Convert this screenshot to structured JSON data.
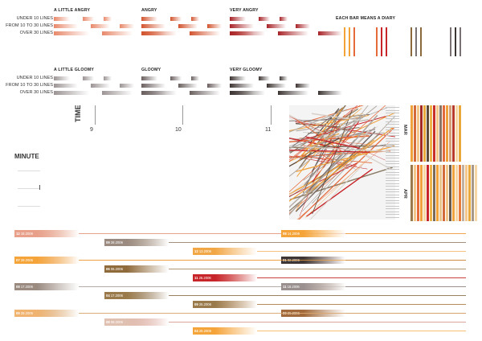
{
  "legend": {
    "rows": [
      "UNDER 10 LINES",
      "FROM 10 TO 30 LINES",
      "OVER 30 LINES"
    ],
    "groups": [
      {
        "name": "A LITTLE ANGRY",
        "color": "#e8886a"
      },
      {
        "name": "ANGRY",
        "color": "#d2542f"
      },
      {
        "name": "VERY ANGRY",
        "color": "#a82428"
      },
      {
        "name": "A LITTLE GLOOMY",
        "color": "#9c9494"
      },
      {
        "name": "GLOOMY",
        "color": "#6b6060"
      },
      {
        "name": "VERY GLOOMY",
        "color": "#3e3634"
      }
    ]
  },
  "diary_legend": {
    "title": "EACH BAR MEANS A DIARY",
    "colors": [
      "#f3a338",
      "#e46a3a",
      "#c8252a",
      "#8a6a3a",
      "#7a7272",
      "#3b3533"
    ]
  },
  "time_axis": {
    "label": "TIME",
    "ticks": [
      "9",
      "10",
      "11"
    ]
  },
  "minute_axis": {
    "label": "MINUTE"
  },
  "months": [
    "MAR",
    "APR"
  ],
  "mar_colors": [
    "#f0a23c",
    "#d36a3a",
    "#f3c88a",
    "#a62a24",
    "#e8a83a",
    "#5a4a3a",
    "#f0b54a",
    "#c9302a",
    "#f3c88a",
    "#8a7464",
    "#e46a3a",
    "#f0a23c",
    "#d4a07a",
    "#b83a2a",
    "#f5d8a6",
    "#e8a83a"
  ],
  "apr_colors": [
    "#9a7a4a",
    "#f3c88a",
    "#e46a3a",
    "#f0a23c",
    "#f5d8a6",
    "#c8252a",
    "#f0b54a",
    "#7a6a5a",
    "#f3a338",
    "#e8c890",
    "#d36a3a",
    "#f3c88a",
    "#6a5a4a",
    "#f0a23c",
    "#f5d8a6",
    "#e87a3a",
    "#c0b0a0",
    "#f3c88a",
    "#e8a83a",
    "#a89888",
    "#f5d8a6"
  ],
  "timeline": [
    {
      "day": "03",
      "date": "19.2006",
      "color": "#f5a43a"
    },
    {
      "day": "11",
      "date": "29.2006",
      "color": "#9a7a4a"
    },
    {
      "day": "12",
      "date": "13.2006",
      "color": "#f2a746"
    },
    {
      "day": "06",
      "date": "17.2006",
      "color": "#8f7a56"
    },
    {
      "day": "09",
      "date": "05.2006",
      "color": "#d88a5a"
    },
    {
      "day": "06",
      "date": "06.2006",
      "color": "#8f6a3a"
    },
    {
      "day": "04",
      "date": "08.2006",
      "color": "#f0b370"
    },
    {
      "day": "04",
      "date": "17.2006",
      "color": "#d89a6a"
    },
    {
      "day": "08",
      "date": "17.2006",
      "color": "#9a8a80"
    },
    {
      "day": "07",
      "date": "24.2006",
      "color": "#b8282a"
    },
    {
      "day": "11",
      "date": "28.2006",
      "color": "#f0b090"
    },
    {
      "day": "09",
      "date": "25.2006",
      "color": "#a26a3a"
    },
    {
      "day": "08",
      "date": "23.2006",
      "color": "#d28a5a"
    },
    {
      "day": "08",
      "date": "08.2006",
      "color": "#e0c0b0"
    },
    {
      "day": "04",
      "date": "26.2006",
      "color": "#f5a43a"
    },
    {
      "day": "05",
      "date": "04.2006",
      "color": "#f0b0a0"
    },
    {
      "day": "12",
      "date": "18.2006",
      "color": "#e8a08a"
    },
    {
      "day": "09",
      "date": "28.2006",
      "color": "#9a8a80"
    },
    {
      "day": "01",
      "date": "27.2006",
      "color": "#c84a36"
    },
    {
      "day": "01",
      "date": "02.2006",
      "color": "#3e3634"
    },
    {
      "day": "07",
      "date": "28.2006",
      "color": "#f5a43a"
    },
    {
      "day": "01",
      "date": "07.2006",
      "color": "#6b6060"
    },
    {
      "day": "11",
      "date": "26.2006",
      "color": "#c8252a"
    },
    {
      "day": "11",
      "date": "18.2006",
      "color": "#9a9090"
    },
    {
      "day": "10",
      "date": "14.2006",
      "color": "#8a7a64"
    },
    {
      "day": "04",
      "date": "17.2006",
      "color": "#9a7a4a"
    },
    {
      "day": "09",
      "date": "25.2006",
      "color": "#9a7a4a"
    },
    {
      "day": "08",
      "date": "14.2006",
      "color": "#f5a43a"
    },
    {
      "day": "09",
      "date": "28.2006",
      "color": "#f0b370"
    }
  ]
}
